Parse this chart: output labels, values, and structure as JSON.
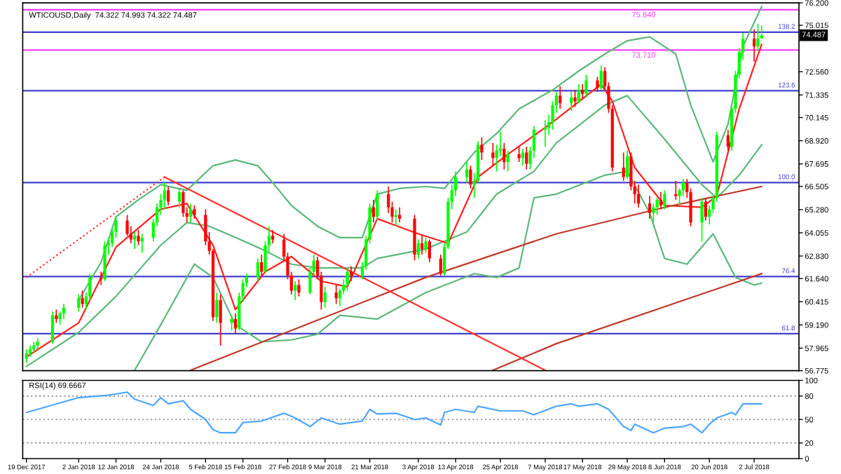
{
  "chart_data": [
    {
      "type": "candlestick",
      "title": "WTICOUSD,Daily  74.322 74.993 74.322 74.487",
      "x": [
        "2017-12-19",
        "2017-12-20",
        "2017-12-21",
        "2017-12-22",
        "2017-12-26",
        "2017-12-27",
        "2017-12-28",
        "2017-12-29",
        "2018-01-02",
        "2018-01-03",
        "2018-01-04",
        "2018-01-05",
        "2018-01-08",
        "2018-01-09",
        "2018-01-10",
        "2018-01-11",
        "2018-01-12",
        "2018-01-15",
        "2018-01-16",
        "2018-01-17",
        "2018-01-18",
        "2018-01-19",
        "2018-01-22",
        "2018-01-23",
        "2018-01-24",
        "2018-01-25",
        "2018-01-26",
        "2018-01-29",
        "2018-01-30",
        "2018-01-31",
        "2018-02-01",
        "2018-02-02",
        "2018-02-05",
        "2018-02-06",
        "2018-02-07",
        "2018-02-08",
        "2018-02-09",
        "2018-02-12",
        "2018-02-13",
        "2018-02-14",
        "2018-02-15",
        "2018-02-16",
        "2018-02-19",
        "2018-02-20",
        "2018-02-21",
        "2018-02-22",
        "2018-02-23",
        "2018-02-26",
        "2018-02-27",
        "2018-02-28",
        "2018-03-01",
        "2018-03-02",
        "2018-03-05",
        "2018-03-06",
        "2018-03-07",
        "2018-03-08",
        "2018-03-09",
        "2018-03-12",
        "2018-03-13",
        "2018-03-14",
        "2018-03-15",
        "2018-03-16",
        "2018-03-19",
        "2018-03-20",
        "2018-03-21",
        "2018-03-22",
        "2018-03-23",
        "2018-03-26",
        "2018-03-27",
        "2018-03-28",
        "2018-03-29",
        "2018-04-02",
        "2018-04-03",
        "2018-04-04",
        "2018-04-05",
        "2018-04-06",
        "2018-04-09",
        "2018-04-10",
        "2018-04-11",
        "2018-04-12",
        "2018-04-13",
        "2018-04-16",
        "2018-04-17",
        "2018-04-18",
        "2018-04-19",
        "2018-04-20",
        "2018-04-23",
        "2018-04-24",
        "2018-04-25",
        "2018-04-26",
        "2018-04-27",
        "2018-04-30",
        "2018-05-01",
        "2018-05-02",
        "2018-05-03",
        "2018-05-04",
        "2018-05-07",
        "2018-05-08",
        "2018-05-09",
        "2018-05-10",
        "2018-05-11",
        "2018-05-14",
        "2018-05-15",
        "2018-05-16",
        "2018-05-17",
        "2018-05-18",
        "2018-05-21",
        "2018-05-22",
        "2018-05-23",
        "2018-05-24",
        "2018-05-25",
        "2018-05-28",
        "2018-05-29",
        "2018-05-30",
        "2018-05-31",
        "2018-06-01",
        "2018-06-04",
        "2018-06-05",
        "2018-06-06",
        "2018-06-07",
        "2018-06-08",
        "2018-06-11",
        "2018-06-12",
        "2018-06-13",
        "2018-06-14",
        "2018-06-15",
        "2018-06-18",
        "2018-06-19",
        "2018-06-20",
        "2018-06-21",
        "2018-06-22",
        "2018-06-25",
        "2018-06-26",
        "2018-06-27",
        "2018-06-28",
        "2018-06-29",
        "2018-07-02",
        "2018-07-03",
        "2018-07-04"
      ],
      "ohlc": [
        [
          57.4,
          57.9,
          57.2,
          57.7
        ],
        [
          57.7,
          58.1,
          57.5,
          57.9
        ],
        [
          57.9,
          58.3,
          57.7,
          58.1
        ],
        [
          58.1,
          58.5,
          57.9,
          58.3
        ],
        [
          58.3,
          59.9,
          58.2,
          59.7
        ],
        [
          59.7,
          60.0,
          59.3,
          59.5
        ],
        [
          59.5,
          59.9,
          59.2,
          59.8
        ],
        [
          59.8,
          60.3,
          59.5,
          60.1
        ],
        [
          60.1,
          60.8,
          59.9,
          60.6
        ],
        [
          60.6,
          61.0,
          60.1,
          60.3
        ],
        [
          60.3,
          60.9,
          60.0,
          60.7
        ],
        [
          60.7,
          61.9,
          60.5,
          61.7
        ],
        [
          61.7,
          62.0,
          61.3,
          61.6
        ],
        [
          61.6,
          63.6,
          61.5,
          63.4
        ],
        [
          63.4,
          63.8,
          62.9,
          63.5
        ],
        [
          63.5,
          64.3,
          63.3,
          64.1
        ],
        [
          64.1,
          64.9,
          63.8,
          64.7
        ],
        [
          64.7,
          65.0,
          63.9,
          64.0
        ],
        [
          64.0,
          64.4,
          63.5,
          63.7
        ],
        [
          63.7,
          64.1,
          63.2,
          63.9
        ],
        [
          63.9,
          64.2,
          63.4,
          63.6
        ],
        [
          63.6,
          64.0,
          63.0,
          63.8
        ],
        [
          63.8,
          64.8,
          63.6,
          64.6
        ],
        [
          64.6,
          65.6,
          64.4,
          65.4
        ],
        [
          65.4,
          66.1,
          65.0,
          65.8
        ],
        [
          65.8,
          66.7,
          65.3,
          66.3
        ],
        [
          66.3,
          66.5,
          65.5,
          65.7
        ],
        [
          65.7,
          66.4,
          65.4,
          66.2
        ],
        [
          66.2,
          66.3,
          64.9,
          65.1
        ],
        [
          65.1,
          65.4,
          64.6,
          64.9
        ],
        [
          64.9,
          65.6,
          64.6,
          65.3
        ],
        [
          65.3,
          65.5,
          64.8,
          65.0
        ],
        [
          65.0,
          65.3,
          63.4,
          63.6
        ],
        [
          63.6,
          64.1,
          62.9,
          63.1
        ],
        [
          63.1,
          63.2,
          59.4,
          59.6
        ],
        [
          59.6,
          60.9,
          59.3,
          60.5
        ],
        [
          60.5,
          60.8,
          58.1,
          59.3
        ],
        [
          59.3,
          59.7,
          58.9,
          59.5
        ],
        [
          59.5,
          59.8,
          58.7,
          59.0
        ],
        [
          59.0,
          60.9,
          58.9,
          60.7
        ],
        [
          60.7,
          61.6,
          60.4,
          61.4
        ],
        [
          61.4,
          61.9,
          61.2,
          61.7
        ],
        [
          61.7,
          62.7,
          61.5,
          62.5
        ],
        [
          62.5,
          62.9,
          61.8,
          62.0
        ],
        [
          62.0,
          63.6,
          61.9,
          63.4
        ],
        [
          63.4,
          64.4,
          63.0,
          63.9
        ],
        [
          63.9,
          64.2,
          63.5,
          63.7
        ],
        [
          63.7,
          64.0,
          62.6,
          62.8
        ],
        [
          62.8,
          63.0,
          61.6,
          61.8
        ],
        [
          61.8,
          62.0,
          60.8,
          61.0
        ],
        [
          61.0,
          61.5,
          60.5,
          61.3
        ],
        [
          61.3,
          61.6,
          60.7,
          60.9
        ],
        [
          60.9,
          62.2,
          60.8,
          62.0
        ],
        [
          62.0,
          62.9,
          61.8,
          62.6
        ],
        [
          62.6,
          62.8,
          61.6,
          61.8
        ],
        [
          61.8,
          62.0,
          60.0,
          60.4
        ],
        [
          60.4,
          61.2,
          60.1,
          60.9
        ],
        [
          60.9,
          61.3,
          60.3,
          60.6
        ],
        [
          60.6,
          61.1,
          60.2,
          61.0
        ],
        [
          61.0,
          61.6,
          60.8,
          61.3
        ],
        [
          61.3,
          62.2,
          61.0,
          62.0
        ],
        [
          62.0,
          62.3,
          61.5,
          61.8
        ],
        [
          61.8,
          62.5,
          61.6,
          62.3
        ],
        [
          62.3,
          63.9,
          62.1,
          63.7
        ],
        [
          63.7,
          65.6,
          63.5,
          65.4
        ],
        [
          65.4,
          65.8,
          64.6,
          64.9
        ],
        [
          64.9,
          66.3,
          64.7,
          66.1
        ],
        [
          66.1,
          66.5,
          65.1,
          65.4
        ],
        [
          65.4,
          65.7,
          64.6,
          64.9
        ],
        [
          64.9,
          65.3,
          64.4,
          65.0
        ],
        [
          65.0,
          65.4,
          64.6,
          64.8
        ],
        [
          64.8,
          65.0,
          62.6,
          62.9
        ],
        [
          62.9,
          63.7,
          62.7,
          63.5
        ],
        [
          63.5,
          63.9,
          62.9,
          63.2
        ],
        [
          63.2,
          63.8,
          63.0,
          63.6
        ],
        [
          63.6,
          63.7,
          62.5,
          62.7
        ],
        [
          62.7,
          62.9,
          61.8,
          61.9
        ],
        [
          61.9,
          63.5,
          61.8,
          63.3
        ],
        [
          63.3,
          65.9,
          63.2,
          65.7
        ],
        [
          65.7,
          66.6,
          65.3,
          66.3
        ],
        [
          66.3,
          67.3,
          66.0,
          67.0
        ],
        [
          67.0,
          67.8,
          66.7,
          67.4
        ],
        [
          67.4,
          67.6,
          66.4,
          66.6
        ],
        [
          66.6,
          67.2,
          65.9,
          66.8
        ],
        [
          66.8,
          68.9,
          66.7,
          68.7
        ],
        [
          68.7,
          69.1,
          67.9,
          68.3
        ],
        [
          68.3,
          68.8,
          67.6,
          68.0
        ],
        [
          68.0,
          68.7,
          67.3,
          68.4
        ],
        [
          68.4,
          69.4,
          68.1,
          68.5
        ],
        [
          68.5,
          68.8,
          67.4,
          67.8
        ],
        [
          67.8,
          68.4,
          67.3,
          68.2
        ],
        [
          68.2,
          68.6,
          67.8,
          68.0
        ],
        [
          68.0,
          68.5,
          67.6,
          68.3
        ],
        [
          68.3,
          68.6,
          67.4,
          67.7
        ],
        [
          67.7,
          68.6,
          67.4,
          68.4
        ],
        [
          68.4,
          69.7,
          68.0,
          69.5
        ],
        [
          69.5,
          70.0,
          68.6,
          69.6
        ],
        [
          69.6,
          70.3,
          69.2,
          69.9
        ],
        [
          69.9,
          71.0,
          69.5,
          70.8
        ],
        [
          70.8,
          71.5,
          70.4,
          71.3
        ],
        [
          71.3,
          71.8,
          70.6,
          70.9
        ],
        [
          70.9,
          71.5,
          70.5,
          71.2
        ],
        [
          71.2,
          71.6,
          70.7,
          71.0
        ],
        [
          71.0,
          71.9,
          70.9,
          71.6
        ],
        [
          71.6,
          71.9,
          71.1,
          71.4
        ],
        [
          71.4,
          72.4,
          71.2,
          72.1
        ],
        [
          72.1,
          72.3,
          71.5,
          71.7
        ],
        [
          71.7,
          72.9,
          71.6,
          72.6
        ],
        [
          72.6,
          72.8,
          71.6,
          71.8
        ],
        [
          71.8,
          72.0,
          70.4,
          70.6
        ],
        [
          70.6,
          70.8,
          67.3,
          67.5
        ],
        [
          67.5,
          68.3,
          66.8,
          67.0
        ],
        [
          67.0,
          68.4,
          66.9,
          68.1
        ],
        [
          68.1,
          68.3,
          66.3,
          66.5
        ],
        [
          66.5,
          66.8,
          65.6,
          66.1
        ],
        [
          66.1,
          66.6,
          65.4,
          65.6
        ],
        [
          65.6,
          66.0,
          64.8,
          65.1
        ],
        [
          65.1,
          65.6,
          64.6,
          65.4
        ],
        [
          65.4,
          65.9,
          65.0,
          65.8
        ],
        [
          65.8,
          66.2,
          65.3,
          65.5
        ],
        [
          65.5,
          66.3,
          65.3,
          66.1
        ],
        [
          66.1,
          66.8,
          65.8,
          66.0
        ],
        [
          66.0,
          66.4,
          65.5,
          66.3
        ],
        [
          66.3,
          66.9,
          66.0,
          66.7
        ],
        [
          66.7,
          66.9,
          65.9,
          66.2
        ],
        [
          66.2,
          66.4,
          64.4,
          64.6
        ],
        [
          64.6,
          65.9,
          63.6,
          65.7
        ],
        [
          65.7,
          65.9,
          64.7,
          64.9
        ],
        [
          64.9,
          65.5,
          64.5,
          65.3
        ],
        [
          65.3,
          66.0,
          65.1,
          65.9
        ],
        [
          65.9,
          69.4,
          65.7,
          69.2
        ],
        [
          69.2,
          69.5,
          68.4,
          68.6
        ],
        [
          68.6,
          70.8,
          68.4,
          70.6
        ],
        [
          70.6,
          72.6,
          70.4,
          72.4
        ],
        [
          72.4,
          73.8,
          72.2,
          73.6
        ],
        [
          73.6,
          74.6,
          73.2,
          74.3
        ],
        [
          74.3,
          74.8,
          73.1,
          73.9
        ],
        [
          73.9,
          75.1,
          73.7,
          74.3
        ],
        [
          74.322,
          74.993,
          74.322,
          74.487
        ]
      ],
      "colors": [
        "#00ff00",
        "#00ff00",
        "#00ff00",
        "#00ff00",
        "#00ff00",
        "#ff0000",
        "#00ff00",
        "#00ff00",
        "#00ff00",
        "#ff0000",
        "#00ff00",
        "#00ff00",
        "#ff0000",
        "#00ff00",
        "#00ff00",
        "#00ff00",
        "#00ff00",
        "#ff0000",
        "#ff0000",
        "#00ff00",
        "#ff0000",
        "#00ff00",
        "#00ff00",
        "#00ff00",
        "#00ff00",
        "#00ff00",
        "#ff0000",
        "#00ff00",
        "#ff0000",
        "#ff0000",
        "#00ff00",
        "#ff0000",
        "#ff0000",
        "#ff0000",
        "#ff0000",
        "#00ff00",
        "#ff0000",
        "#00ff00",
        "#ff0000",
        "#00ff00",
        "#00ff00",
        "#00ff00",
        "#00ff00",
        "#ff0000",
        "#00ff00",
        "#00ff00",
        "#ff0000",
        "#ff0000",
        "#ff0000",
        "#ff0000",
        "#00ff00",
        "#ff0000",
        "#00ff00",
        "#00ff00",
        "#ff0000",
        "#ff0000",
        "#00ff00",
        "#ff0000",
        "#00ff00",
        "#00ff00",
        "#00ff00",
        "#ff0000",
        "#00ff00",
        "#00ff00",
        "#00ff00",
        "#ff0000",
        "#00ff00",
        "#ff0000",
        "#ff0000",
        "#00ff00",
        "#ff0000",
        "#ff0000",
        "#00ff00",
        "#ff0000",
        "#00ff00",
        "#ff0000",
        "#ff0000",
        "#00ff00",
        "#00ff00",
        "#00ff00",
        "#00ff00",
        "#00ff00",
        "#ff0000",
        "#00ff00",
        "#00ff00",
        "#ff0000",
        "#ff0000",
        "#00ff00",
        "#00ff00",
        "#ff0000",
        "#00ff00",
        "#ff0000",
        "#00ff00",
        "#ff0000",
        "#00ff00",
        "#00ff00",
        "#00ff00",
        "#00ff00",
        "#00ff00",
        "#00ff00",
        "#ff0000",
        "#00ff00",
        "#ff0000",
        "#00ff00",
        "#ff0000",
        "#00ff00",
        "#ff0000",
        "#00ff00",
        "#ff0000",
        "#ff0000",
        "#ff0000",
        "#ff0000",
        "#00ff00",
        "#ff0000",
        "#ff0000",
        "#ff0000",
        "#ff0000",
        "#00ff00",
        "#00ff00",
        "#ff0000",
        "#00ff00",
        "#ff0000",
        "#00ff00",
        "#00ff00",
        "#ff0000",
        "#ff0000",
        "#00ff00",
        "#ff0000",
        "#00ff00",
        "#00ff00",
        "#00ff00",
        "#ff0000",
        "#00ff00",
        "#00ff00",
        "#00ff00",
        "#00ff00",
        "#ff0000",
        "#00ff00",
        "#00ff00"
      ],
      "series": [
        {
          "type": "line",
          "color": "#5cb87a",
          "x": [
            "2018-01-02",
            "2018-01-08",
            "2018-01-12",
            "2018-01-18",
            "2018-01-24",
            "2018-01-31",
            "2018-02-07",
            "2018-02-13",
            "2018-02-19",
            "2018-02-23",
            "2018-02-28",
            "2018-03-07",
            "2018-03-13",
            "2018-03-19",
            "2018-03-23",
            "2018-03-29",
            "2018-04-05",
            "2018-04-10",
            "2018-04-18",
            "2018-04-24",
            "2018-04-30",
            "2018-05-09",
            "2018-05-16",
            "2018-05-23",
            "2018-05-29",
            "2018-06-04",
            "2018-06-11",
            "2018-06-15",
            "2018-06-21",
            "2018-06-25",
            "2018-06-29",
            "2018-07-04"
          ],
          "values": [
            60.5,
            62.5,
            64.9,
            65.8,
            66.6,
            66.3,
            67.6,
            67.9,
            67.6,
            66.7,
            65.5,
            64.4,
            63.8,
            63.8,
            66.1,
            66.4,
            66.5,
            66.4,
            68.3,
            69.3,
            70.6,
            71.6,
            72.6,
            73.5,
            74.2,
            74.4,
            73.5,
            70.8,
            67.8,
            69.8,
            73.9,
            76.0
          ]
        },
        {
          "type": "line",
          "color": "#5cb87a",
          "x": [
            "2017-12-19",
            "2018-01-02",
            "2018-01-12",
            "2018-01-24",
            "2018-01-31",
            "2018-02-06",
            "2018-02-12",
            "2018-02-20",
            "2018-02-28",
            "2018-03-07",
            "2018-03-19",
            "2018-03-23",
            "2018-04-05",
            "2018-04-16",
            "2018-04-24",
            "2018-05-04",
            "2018-05-10",
            "2018-05-23",
            "2018-05-29",
            "2018-06-08",
            "2018-06-18",
            "2018-06-22",
            "2018-06-28",
            "2018-07-04"
          ],
          "values": [
            57.0,
            58.8,
            60.7,
            63.4,
            64.6,
            64.4,
            63.9,
            63.2,
            62.4,
            62.2,
            62.2,
            62.7,
            63.2,
            64.1,
            66.1,
            67.3,
            68.8,
            70.8,
            71.3,
            69.0,
            66.6,
            65.9,
            67.1,
            68.7
          ]
        },
        {
          "type": "line",
          "color": "#5cb87a",
          "x": [
            "2018-01-17",
            "2018-01-24",
            "2018-02-02",
            "2018-02-07",
            "2018-02-13",
            "2018-02-20",
            "2018-02-28",
            "2018-03-07",
            "2018-03-13",
            "2018-03-23",
            "2018-04-05",
            "2018-04-18",
            "2018-04-24",
            "2018-04-30",
            "2018-05-04",
            "2018-05-10",
            "2018-05-23",
            "2018-05-29",
            "2018-06-04",
            "2018-06-08",
            "2018-06-14",
            "2018-06-21",
            "2018-06-27",
            "2018-07-02",
            "2018-07-04"
          ],
          "values": [
            56.8,
            59.2,
            62.4,
            61.7,
            59.2,
            58.3,
            58.4,
            58.7,
            59.7,
            59.5,
            60.9,
            61.9,
            61.7,
            62.2,
            65.9,
            66.1,
            67.1,
            67.3,
            65.1,
            62.7,
            62.4,
            64.0,
            61.7,
            61.3,
            61.4
          ]
        },
        {
          "type": "line",
          "color": "#ff2020",
          "x": [
            "2017-12-19",
            "2018-01-02",
            "2018-01-12",
            "2018-01-24",
            "2018-01-31",
            "2018-02-07",
            "2018-02-13",
            "2018-02-21",
            "2018-02-28",
            "2018-03-08",
            "2018-03-15",
            "2018-03-23",
            "2018-04-03",
            "2018-04-11",
            "2018-04-19",
            "2018-04-27",
            "2018-05-09",
            "2018-05-22",
            "2018-05-25",
            "2018-05-31",
            "2018-06-08",
            "2018-06-18",
            "2018-06-22",
            "2018-06-28",
            "2018-07-04"
          ],
          "values": [
            57.5,
            59.3,
            63.3,
            65.3,
            65.6,
            63.4,
            60.0,
            62.0,
            62.8,
            61.5,
            61.2,
            64.8,
            64.0,
            63.5,
            67.0,
            68.2,
            69.9,
            71.9,
            71.0,
            67.5,
            65.5,
            65.4,
            66.0,
            70.6,
            74.0
          ]
        },
        {
          "type": "line",
          "color": "#c0392b",
          "x": [
            "2018-02-01",
            "2018-02-28",
            "2018-04-05",
            "2018-05-10",
            "2018-06-08",
            "2018-07-04"
          ],
          "values": [
            56.8,
            58.9,
            61.7,
            64.0,
            65.4,
            66.5
          ]
        },
        {
          "type": "line",
          "color": "#c0392b",
          "x": [
            "2018-04-23",
            "2018-05-10",
            "2018-07-04"
          ],
          "values": [
            56.8,
            58.2,
            61.9
          ]
        },
        {
          "type": "line",
          "color": "#ff3030",
          "x": [
            "2018-01-25",
            "2018-05-07"
          ],
          "values": [
            67.0,
            56.8
          ]
        },
        {
          "type": "line",
          "color": "#ff3030",
          "line_style": "dotted",
          "x": [
            "2017-12-19",
            "2018-01-25"
          ],
          "values": [
            61.7,
            67.0
          ]
        }
      ],
      "xlim": [
        "2017-12-18",
        "2018-07-14"
      ],
      "ylim": [
        56.775,
        76.2
      ],
      "yticks": [
        {
          "value": 76.2,
          "label": "76.200"
        },
        {
          "value": 75.015,
          "label": "75.015"
        },
        {
          "value": 72.56,
          "label": "72.560"
        },
        {
          "value": 71.335,
          "label": "71.335"
        },
        {
          "value": 70.145,
          "label": "70.145"
        },
        {
          "value": 68.92,
          "label": "68.920"
        },
        {
          "value": 67.695,
          "label": "67.695"
        },
        {
          "value": 66.505,
          "label": "66.505"
        },
        {
          "value": 65.28,
          "label": "65.280"
        },
        {
          "value": 64.055,
          "label": "64.055"
        },
        {
          "value": 62.83,
          "label": "62.830"
        },
        {
          "value": 61.64,
          "label": "61.640"
        },
        {
          "value": 60.415,
          "label": "60.415"
        },
        {
          "value": 59.19,
          "label": "59.190"
        },
        {
          "value": 57.965,
          "label": "57.965"
        },
        {
          "value": 56.775,
          "label": "56.775"
        }
      ],
      "ref_lines": [
        {
          "axis": "y",
          "value": 75.84,
          "label": "75.840",
          "color": "#ff40ff"
        },
        {
          "axis": "y",
          "value": 73.71,
          "label": "73.710",
          "color": "#ff40ff"
        },
        {
          "axis": "y",
          "value": 74.655,
          "color": "#4040d0"
        },
        {
          "axis": "y",
          "value": 71.56,
          "color": "#4040d0"
        },
        {
          "axis": "y",
          "value": 66.71,
          "color": "#4040d0"
        },
        {
          "axis": "y",
          "value": 61.75,
          "color": "#4040d0"
        },
        {
          "axis": "y",
          "value": 58.73,
          "color": "#4040d0"
        }
      ],
      "annotations": [
        "74.487",
        {
          "text": "138.2",
          "y": 74.655
        },
        {
          "text": "123.6",
          "y": 71.56
        },
        {
          "text": "100.0",
          "y": 66.71
        },
        {
          "text": "76.4",
          "y": 61.75
        },
        {
          "text": "61.8",
          "y": 58.73
        }
      ],
      "tick_labels": "y"
    },
    {
      "type": "line",
      "title": "RSI(14) 69.6667",
      "series": [
        {
          "color": "#4da6ff",
          "x": [
            "2017-12-19",
            "2017-12-22",
            "2018-01-02",
            "2018-01-10",
            "2018-01-15",
            "2018-01-17",
            "2018-01-22",
            "2018-01-24",
            "2018-01-26",
            "2018-01-30",
            "2018-02-01",
            "2018-02-05",
            "2018-02-07",
            "2018-02-09",
            "2018-02-13",
            "2018-02-15",
            "2018-02-20",
            "2018-02-26",
            "2018-03-01",
            "2018-03-05",
            "2018-03-08",
            "2018-03-13",
            "2018-03-19",
            "2018-03-21",
            "2018-03-23",
            "2018-03-28",
            "2018-04-02",
            "2018-04-05",
            "2018-04-09",
            "2018-04-10",
            "2018-04-13",
            "2018-04-18",
            "2018-04-19",
            "2018-04-25",
            "2018-05-01",
            "2018-05-04",
            "2018-05-10",
            "2018-05-14",
            "2018-05-16",
            "2018-05-21",
            "2018-05-24",
            "2018-05-28",
            "2018-05-30",
            "2018-05-31",
            "2018-06-05",
            "2018-06-08",
            "2018-06-13",
            "2018-06-15",
            "2018-06-18",
            "2018-06-20",
            "2018-06-22",
            "2018-06-26",
            "2018-06-27",
            "2018-06-29",
            "2018-07-04"
          ],
          "values": [
            59,
            63,
            78,
            81,
            85,
            76,
            68,
            78,
            70,
            74,
            63,
            50,
            37,
            33,
            33,
            46,
            48,
            58,
            52,
            41,
            52,
            44,
            48,
            63,
            57,
            58,
            50,
            52,
            43,
            59,
            63,
            59,
            67,
            61,
            61,
            56,
            67,
            70,
            67,
            70,
            63,
            41,
            36,
            44,
            33,
            39,
            41,
            44,
            33,
            44,
            52,
            59,
            56,
            70,
            70
          ]
        }
      ],
      "xlim": [
        "2017-12-18",
        "2018-07-14"
      ],
      "xticks": [
        {
          "value": "2017-12-19",
          "label": "19 Dec 2017"
        },
        {
          "value": "2018-01-02",
          "label": "2 Jan 2018"
        },
        {
          "value": "2018-01-12",
          "label": "12 Jan 2018"
        },
        {
          "value": "2018-01-24",
          "label": "24 Jan 2018"
        },
        {
          "value": "2018-02-05",
          "label": "5 Feb 2018"
        },
        {
          "value": "2018-02-15",
          "label": "15 Feb 2018"
        },
        {
          "value": "2018-02-27",
          "label": "27 Feb 2018"
        },
        {
          "value": "2018-03-09",
          "label": "9 Mar 2018"
        },
        {
          "value": "2018-03-21",
          "label": "21 Mar 2018"
        },
        {
          "value": "2018-04-03",
          "label": "3 Apr 2018"
        },
        {
          "value": "2018-04-13",
          "label": "13 Apr 2018"
        },
        {
          "value": "2018-04-25",
          "label": "25 Apr 2018"
        },
        {
          "value": "2018-05-07",
          "label": "7 May 2018"
        },
        {
          "value": "2018-05-17",
          "label": "17 May 2018"
        },
        {
          "value": "2018-05-29",
          "label": "29 May 2018"
        },
        {
          "value": "2018-06-08",
          "label": "8 Jun 2018"
        },
        {
          "value": "2018-06-20",
          "label": "20 Jun 2018"
        },
        {
          "value": "2018-07-02",
          "label": "2 Jul 2018"
        }
      ],
      "ylim": [
        0,
        100
      ],
      "yticks": [
        0,
        20,
        50,
        80,
        100
      ],
      "ref_lines": [
        {
          "axis": "y",
          "value": 80,
          "color": "#a0a0a0",
          "line_style": "dotted"
        },
        {
          "axis": "y",
          "value": 50,
          "color": "#a0a0a0",
          "line_style": "dotted"
        },
        {
          "axis": "y",
          "value": 20,
          "color": "#a0a0a0",
          "line_style": "dotted"
        }
      ]
    }
  ]
}
